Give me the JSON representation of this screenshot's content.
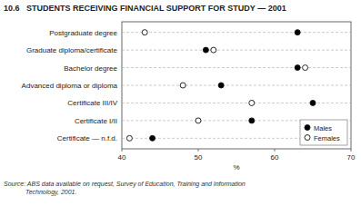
{
  "chart_data": {
    "type": "dot",
    "title": "10.6   STUDENTS RECEIVING FINANCIAL SUPPORT FOR STUDY — 2001",
    "categories": [
      "Certificate — n.f.d.",
      "Certificate I/II",
      "Certificate III/IV",
      "Advanced diploma or diploma",
      "Bachelor degree",
      "Graduate diploma/certificate",
      "Postgraduate degree"
    ],
    "series": [
      {
        "name": "Males",
        "color": "black",
        "values": [
          44.0,
          57.0,
          65.0,
          53.0,
          63.0,
          51.0,
          63.0
        ]
      },
      {
        "name": "Females",
        "color": "white",
        "values": [
          41.0,
          50.0,
          57.0,
          48.0,
          64.0,
          52.0,
          43.0
        ]
      }
    ],
    "x_label": "%",
    "xlim": [
      40,
      70
    ],
    "xticks": [
      40,
      50,
      60,
      70
    ],
    "grid": true,
    "legend": "lower right",
    "annotations": [
      "Source: ABS data available on request, Survey of Education, Training and Information",
      "Technology, 2001."
    ]
  }
}
